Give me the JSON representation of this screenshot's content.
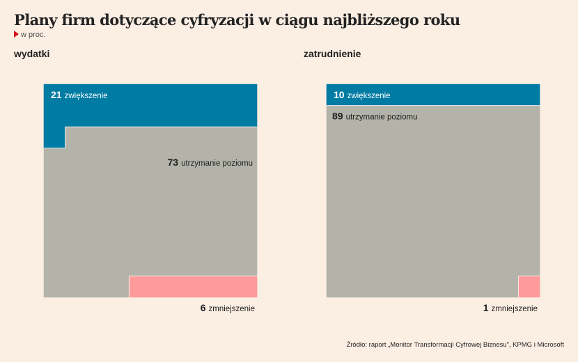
{
  "title": "Plany firm dotyczące cyfryzacji w ciągu najbliższego roku",
  "subtitle": "w proc.",
  "source": "Źródło: raport „Monitor Transformacji Cyfrowej Biznesu”, KPMG i Microsoft",
  "colors": {
    "background": "#fbeee3",
    "increase": "#007ba3",
    "maintain": "#b3b3aa",
    "decrease": "#ff9a9a",
    "accent": "#d4121e"
  },
  "chart_data": [
    {
      "type": "waffle",
      "title": "wydatki",
      "categories": [
        "zwiększenie",
        "utrzymanie poziomu",
        "zmniejszenie"
      ],
      "values": [
        21,
        73,
        6
      ],
      "value_labels": [
        "21",
        "73",
        "6"
      ]
    },
    {
      "type": "waffle",
      "title": "zatrudnienie",
      "categories": [
        "zwiększenie",
        "utrzymanie poziomu",
        "zmniejszenie"
      ],
      "values": [
        10,
        89,
        1
      ],
      "value_labels": [
        "10",
        "89",
        "1"
      ]
    }
  ]
}
